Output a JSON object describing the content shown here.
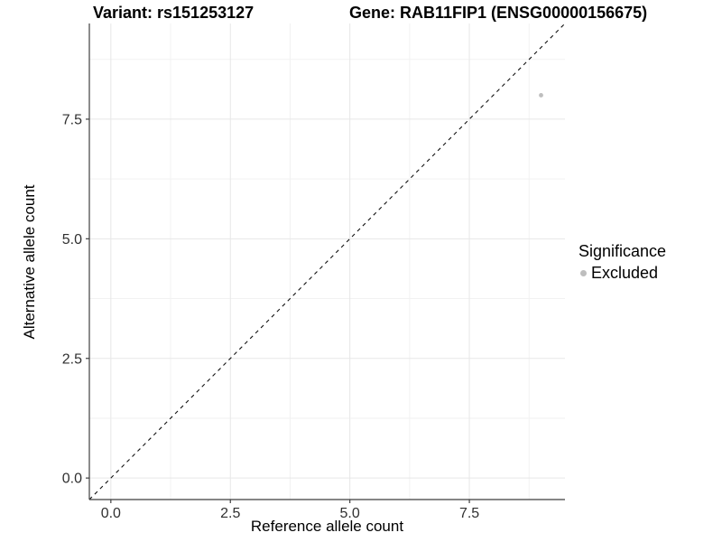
{
  "chart_data": {
    "type": "scatter",
    "title_left": "Variant: rs151253127",
    "title_right": "Gene: RAB11FIP1 (ENSG00000156675)",
    "xlabel": "Reference allele count",
    "ylabel": "Alternative allele count",
    "xlim": [
      -0.45,
      9.5
    ],
    "ylim": [
      -0.45,
      9.5
    ],
    "xticks": {
      "values": [
        0,
        2.5,
        5,
        7.5
      ],
      "labels": [
        "0.0",
        "2.5",
        "5.0",
        "7.5"
      ]
    },
    "yticks": {
      "values": [
        0,
        2.5,
        5,
        7.5
      ],
      "labels": [
        "0.0",
        "2.5",
        "5.0",
        "7.5"
      ]
    },
    "grid": {
      "x_major": [
        0,
        2.5,
        5,
        7.5
      ],
      "x_minor": [
        1.25,
        3.75,
        6.25,
        8.75
      ],
      "y_major": [
        0,
        2.5,
        5,
        7.5
      ],
      "y_minor": [
        1.25,
        3.75,
        6.25,
        8.75
      ],
      "major_color": "#e7e7e7",
      "minor_color": "#f2f2f2"
    },
    "points": [
      {
        "x": 9,
        "y": 8,
        "series": "Excluded",
        "color": "#bebebe",
        "radius": 2.4
      }
    ],
    "reference_line": {
      "kind": "identity y = x",
      "style": "dashed",
      "color": "#111111"
    },
    "legend": {
      "title": "Significance",
      "position": "right",
      "entries": [
        {
          "label": "Excluded",
          "marker_color": "#bebebe"
        }
      ]
    },
    "axis_color": "#3f3f3f",
    "tick_label_color": "#303030",
    "background": "#ffffff"
  }
}
